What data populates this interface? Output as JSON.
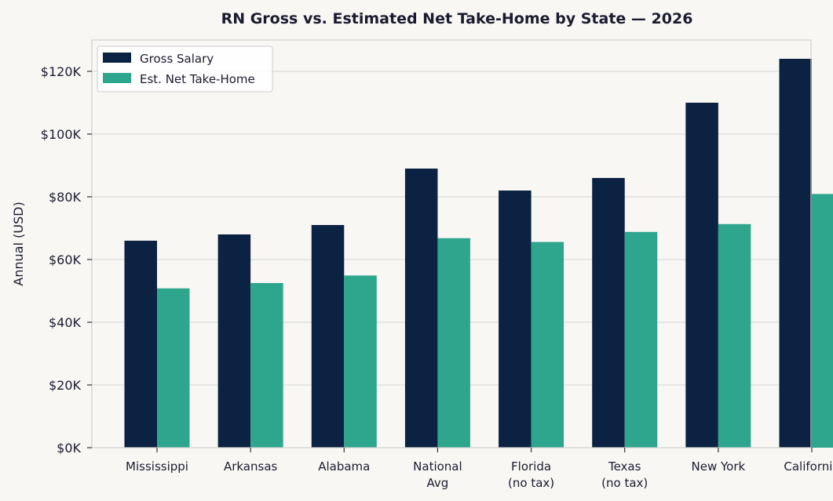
{
  "chart_data": {
    "type": "bar",
    "title": "RN Gross vs. Estimated Net Take-Home by State — 2026",
    "xlabel": "",
    "ylabel": "Annual (USD)",
    "categories": [
      [
        "Mississippi"
      ],
      [
        "Arkansas"
      ],
      [
        "Alabama"
      ],
      [
        "National",
        "Avg"
      ],
      [
        "Florida",
        "(no tax)"
      ],
      [
        "Texas",
        "(no tax)"
      ],
      [
        "New York"
      ],
      [
        "California"
      ]
    ],
    "series": [
      {
        "name": "Gross Salary",
        "color": "#0b2242",
        "values": [
          66000,
          68000,
          71000,
          89000,
          82000,
          86000,
          110000,
          124000
        ]
      },
      {
        "name": "Est. Net Take-Home",
        "color": "#2ea68d",
        "values": [
          50800,
          52500,
          54900,
          66800,
          65600,
          68800,
          71300,
          80900
        ]
      }
    ],
    "ylim": [
      0,
      130000
    ],
    "yticks": [
      0,
      20000,
      40000,
      60000,
      80000,
      100000,
      120000
    ],
    "ytick_labels": [
      "$0K",
      "$20K",
      "$40K",
      "$60K",
      "$80K",
      "$100K",
      "$120K"
    ],
    "grid": true,
    "legend_position": "top-left"
  }
}
